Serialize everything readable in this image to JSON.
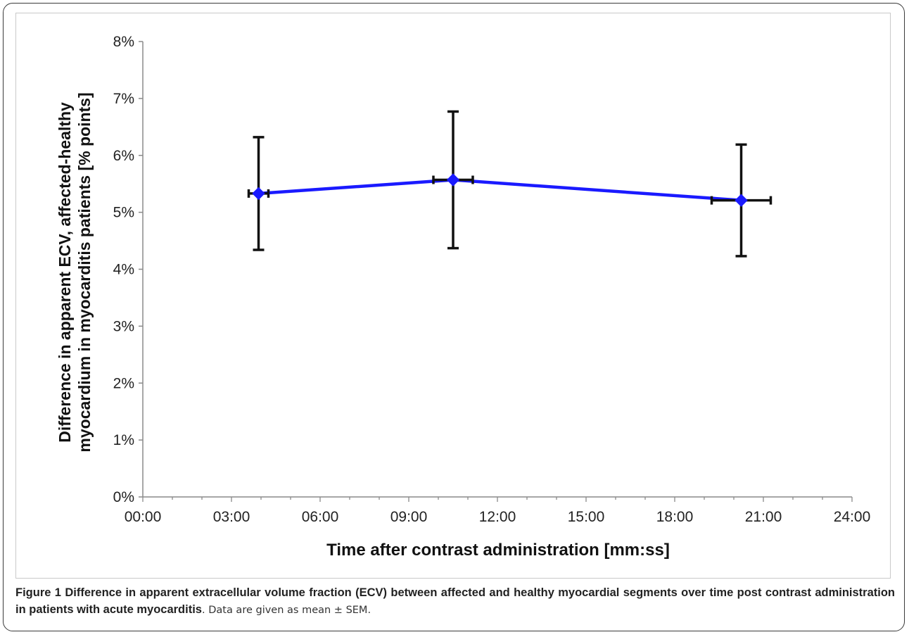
{
  "chart_data": {
    "type": "line",
    "x_label": "Time after contrast administration [mm:ss]",
    "y_label_line1": "Difference in apparent ECV, affected-healthy",
    "y_label_line2": "myocardium in myocarditis patients [% points]",
    "x_ticks": [
      "00:00",
      "03:00",
      "06:00",
      "09:00",
      "12:00",
      "15:00",
      "18:00",
      "21:00",
      "24:00"
    ],
    "x_tick_seconds": [
      0,
      180,
      360,
      540,
      720,
      900,
      1080,
      1260,
      1440
    ],
    "y_ticks": [
      "0%",
      "1%",
      "2%",
      "3%",
      "4%",
      "5%",
      "6%",
      "7%",
      "8%"
    ],
    "y_tick_values": [
      0,
      1,
      2,
      3,
      4,
      5,
      6,
      7,
      8
    ],
    "xlim_seconds": [
      0,
      1440
    ],
    "ylim": [
      0,
      8
    ],
    "x_minor_step_seconds": 60,
    "grid": false,
    "legend": "none",
    "series": [
      {
        "color": "#1a1aff",
        "points": [
          {
            "x_seconds": 235,
            "y": 5.33,
            "y_err": 0.99,
            "x_err": 20
          },
          {
            "x_seconds": 630,
            "y": 5.57,
            "y_err": 1.2,
            "x_err": 40
          },
          {
            "x_seconds": 1215,
            "y": 5.21,
            "y_err": 0.98,
            "x_err": 60
          }
        ]
      }
    ]
  },
  "caption": {
    "bold": "Figure 1 Difference in apparent extracellular volume fraction (ECV) between affected and healthy myocardial segments over time post contrast administration in patients with acute myocarditis",
    "rest": ". Data are given as mean ± SEM."
  }
}
